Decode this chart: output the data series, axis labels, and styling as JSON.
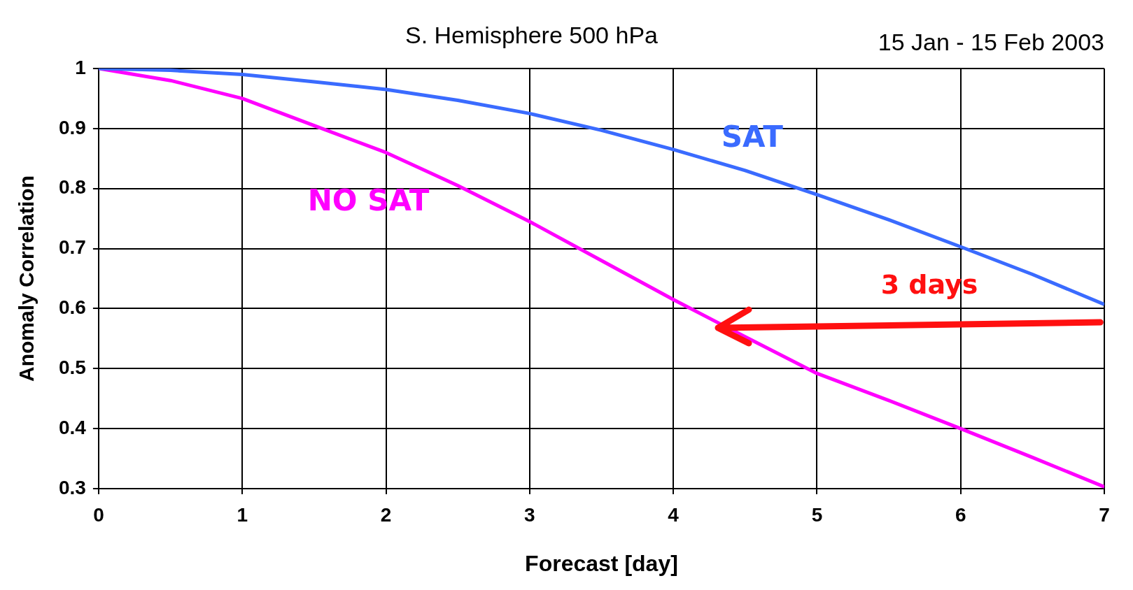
{
  "chart_data": {
    "type": "line",
    "title": "S. Hemisphere 500 hPa",
    "subtitle": "15 Jan - 15 Feb 2003",
    "xlabel": "Forecast [day]",
    "ylabel": "Anomaly Correlation",
    "x": [
      0,
      0.5,
      1,
      1.5,
      2,
      2.5,
      3,
      3.5,
      4,
      4.5,
      5,
      5.5,
      6,
      6.5,
      7
    ],
    "series": [
      {
        "name": "SAT",
        "color": "#3a6bff",
        "values": [
          1,
          0.997,
          0.99,
          0.978,
          0.965,
          0.947,
          0.925,
          0.897,
          0.865,
          0.83,
          0.79,
          0.748,
          0.703,
          0.657,
          0.607
        ]
      },
      {
        "name": "NO SAT",
        "color": "#ff00ff",
        "values": [
          1,
          0.98,
          0.95,
          0.905,
          0.86,
          0.805,
          0.745,
          0.68,
          0.615,
          0.553,
          0.492,
          0.447,
          0.4,
          0.352,
          0.303
        ]
      }
    ],
    "xlim": [
      0,
      7
    ],
    "xticks": [
      0,
      1,
      2,
      3,
      4,
      5,
      6,
      7
    ],
    "ylim": [
      0.3,
      1
    ],
    "yticks": [
      0.3,
      0.4,
      0.5,
      0.6,
      0.7,
      0.8,
      0.9,
      1
    ],
    "annotations": [
      "3 days"
    ],
    "grid": true,
    "legend": false,
    "marker": "none",
    "line_style": "solid"
  }
}
